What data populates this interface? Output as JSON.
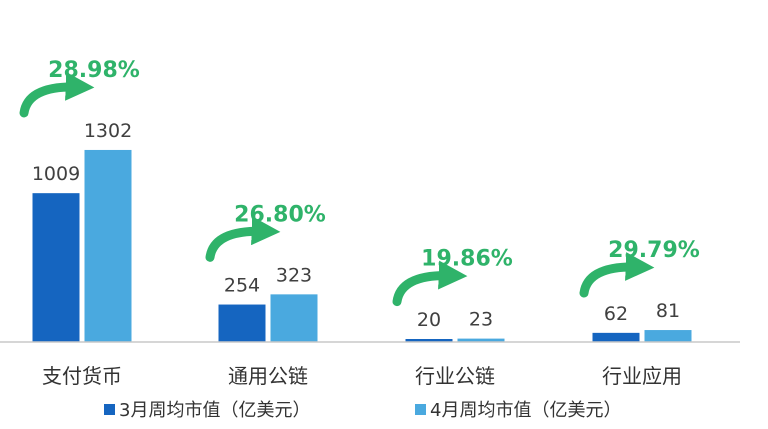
{
  "colors": {
    "march": "#1565c0",
    "april": "#4aa9df",
    "growth": "#2fb36a",
    "axis": "#c8c8c8"
  },
  "chart_data": {
    "type": "bar",
    "categories": [
      "支付货币",
      "通用公链",
      "行业公链",
      "行业应用"
    ],
    "series": [
      {
        "name": "3月周均市值（亿美元）",
        "values": [
          1009,
          254,
          20,
          62
        ]
      },
      {
        "name": "4月周均市值（亿美元）",
        "values": [
          1302,
          323,
          23,
          81
        ]
      }
    ],
    "annotations": [
      "28.98%",
      "26.80%",
      "19.86%",
      "29.79%"
    ],
    "legend_position": "bottom",
    "grid": false
  }
}
